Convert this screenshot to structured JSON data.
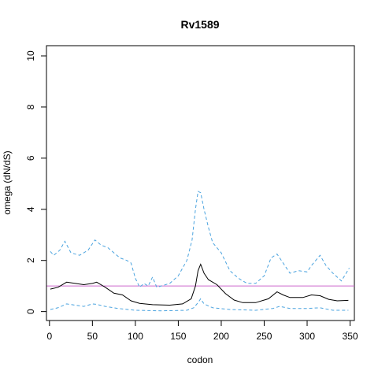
{
  "chart_data": {
    "type": "line",
    "title": "Rv1589",
    "xlabel": "codon",
    "ylabel": "omega (dN/dS)",
    "xlim": [
      0,
      355
    ],
    "ylim": [
      0,
      10
    ],
    "x_ticks": [
      0,
      50,
      100,
      150,
      200,
      250,
      300,
      350
    ],
    "y_ticks": [
      0,
      2,
      4,
      6,
      8,
      10
    ],
    "reference_line": {
      "y": 1,
      "color": "#cc66cc"
    },
    "colors": {
      "mean": "#000000",
      "bounds": "#4aa3df"
    },
    "series": [
      {
        "style": "solid",
        "points": [
          [
            1,
            0.88
          ],
          [
            10,
            0.95
          ],
          [
            20,
            1.15
          ],
          [
            30,
            1.1
          ],
          [
            40,
            1.05
          ],
          [
            50,
            1.1
          ],
          [
            55,
            1.15
          ],
          [
            65,
            0.95
          ],
          [
            75,
            0.72
          ],
          [
            85,
            0.65
          ],
          [
            95,
            0.42
          ],
          [
            105,
            0.32
          ],
          [
            120,
            0.27
          ],
          [
            140,
            0.25
          ],
          [
            155,
            0.3
          ],
          [
            165,
            0.5
          ],
          [
            170,
            1.0
          ],
          [
            173,
            1.6
          ],
          [
            176,
            1.85
          ],
          [
            180,
            1.5
          ],
          [
            185,
            1.25
          ],
          [
            195,
            1.05
          ],
          [
            205,
            0.7
          ],
          [
            215,
            0.45
          ],
          [
            225,
            0.35
          ],
          [
            240,
            0.35
          ],
          [
            255,
            0.5
          ],
          [
            265,
            0.77
          ],
          [
            272,
            0.65
          ],
          [
            280,
            0.55
          ],
          [
            295,
            0.55
          ],
          [
            305,
            0.65
          ],
          [
            315,
            0.62
          ],
          [
            325,
            0.48
          ],
          [
            335,
            0.42
          ],
          [
            348,
            0.44
          ]
        ]
      },
      {
        "style": "dashed",
        "points": [
          [
            1,
            2.35
          ],
          [
            5,
            2.2
          ],
          [
            12,
            2.4
          ],
          [
            18,
            2.75
          ],
          [
            25,
            2.3
          ],
          [
            35,
            2.2
          ],
          [
            45,
            2.4
          ],
          [
            53,
            2.8
          ],
          [
            60,
            2.6
          ],
          [
            68,
            2.5
          ],
          [
            75,
            2.3
          ],
          [
            82,
            2.1
          ],
          [
            90,
            2.0
          ],
          [
            95,
            1.9
          ],
          [
            100,
            1.3
          ],
          [
            105,
            0.95
          ],
          [
            110,
            1.1
          ],
          [
            115,
            1.0
          ],
          [
            120,
            1.35
          ],
          [
            125,
            0.95
          ],
          [
            130,
            1.0
          ],
          [
            140,
            1.1
          ],
          [
            150,
            1.4
          ],
          [
            160,
            2.0
          ],
          [
            166,
            2.8
          ],
          [
            170,
            4.0
          ],
          [
            173,
            4.7
          ],
          [
            176,
            4.65
          ],
          [
            180,
            4.0
          ],
          [
            185,
            3.3
          ],
          [
            190,
            2.7
          ],
          [
            200,
            2.3
          ],
          [
            210,
            1.6
          ],
          [
            220,
            1.3
          ],
          [
            230,
            1.1
          ],
          [
            240,
            1.1
          ],
          [
            250,
            1.4
          ],
          [
            258,
            2.1
          ],
          [
            265,
            2.25
          ],
          [
            272,
            1.9
          ],
          [
            280,
            1.5
          ],
          [
            290,
            1.6
          ],
          [
            300,
            1.55
          ],
          [
            305,
            1.8
          ],
          [
            315,
            2.2
          ],
          [
            322,
            1.8
          ],
          [
            330,
            1.5
          ],
          [
            340,
            1.2
          ],
          [
            349,
            1.7
          ]
        ]
      },
      {
        "style": "dashed",
        "points": [
          [
            1,
            0.08
          ],
          [
            10,
            0.15
          ],
          [
            20,
            0.3
          ],
          [
            30,
            0.25
          ],
          [
            40,
            0.2
          ],
          [
            50,
            0.3
          ],
          [
            55,
            0.28
          ],
          [
            65,
            0.2
          ],
          [
            80,
            0.12
          ],
          [
            100,
            0.05
          ],
          [
            130,
            0.03
          ],
          [
            160,
            0.05
          ],
          [
            168,
            0.15
          ],
          [
            173,
            0.35
          ],
          [
            176,
            0.5
          ],
          [
            180,
            0.3
          ],
          [
            190,
            0.15
          ],
          [
            210,
            0.08
          ],
          [
            240,
            0.05
          ],
          [
            260,
            0.12
          ],
          [
            268,
            0.2
          ],
          [
            280,
            0.12
          ],
          [
            300,
            0.12
          ],
          [
            315,
            0.15
          ],
          [
            330,
            0.05
          ],
          [
            348,
            0.05
          ]
        ]
      }
    ]
  }
}
